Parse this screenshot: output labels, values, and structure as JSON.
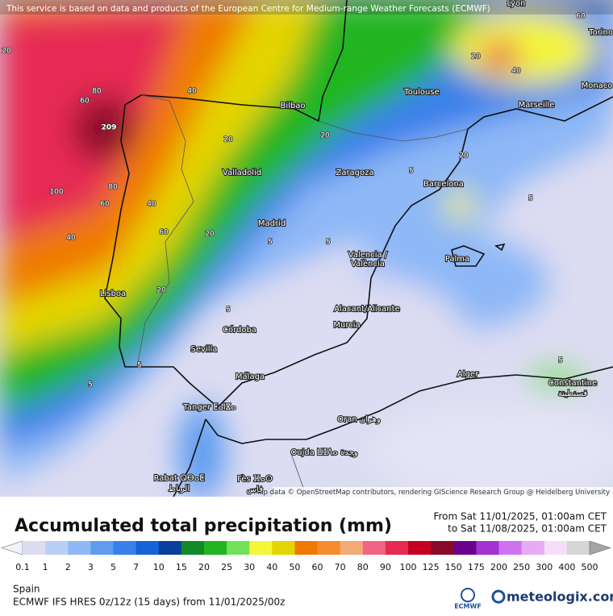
{
  "notice": "This service is based on data and products of the European Centre for Medium-range Weather Forecasts (ECMWF)",
  "map": {
    "cities": [
      "Lyon",
      "Torino",
      "Monaco",
      "Toulouse",
      "Marseille",
      "Bilbao",
      "Zaragoza",
      "Barcelona",
      "Valladolid",
      "Madrid",
      "Valencia /",
      "València",
      "Palma",
      "Lisboa",
      "Alacant/Alicante",
      "Murcia",
      "Córdoba",
      "Sevilla",
      "Málaga",
      "Alger",
      "Constantine",
      "قسنطينة",
      "Tanger ⵟⴰⵏⴵⴰ",
      "Oran وهران",
      "Oujda ⵡⵊⴷⴰ وجدة",
      "Rabat ⵕⴱⴰⵟ",
      "الرباط",
      "Fès ⴼⴰⵙ",
      "فاس"
    ],
    "contour_labels": [
      "209",
      "80",
      "60",
      "40",
      "20",
      "100",
      "60",
      "80",
      "40",
      "60",
      "40",
      "20",
      "20",
      "20",
      "5",
      "5",
      "5",
      "5",
      "5",
      "20",
      "40",
      "60",
      "20",
      "20",
      "5",
      "5",
      "5"
    ],
    "attribution": "Map data © OpenStreetMap contributors, rendering GIScience Research Group @ Heidelberg University"
  },
  "legend": {
    "title": "Accumulated total precipitation (mm)",
    "from": "From Sat 11/01/2025, 01:00am CET",
    "to": "to Sat 11/08/2025, 01:00am CET",
    "levels": [
      0.1,
      1,
      2,
      3,
      5,
      7,
      10,
      15,
      20,
      25,
      30,
      40,
      50,
      60,
      70,
      80,
      90,
      100,
      125,
      150,
      175,
      200,
      250,
      300,
      400,
      500
    ],
    "colors": [
      "#f2f2fb",
      "#dcdcf2",
      "#b8d0f6",
      "#8eb8f6",
      "#5f9cf0",
      "#3a80ea",
      "#1563d8",
      "#0c3f9c",
      "#128a2a",
      "#22b522",
      "#72e05a",
      "#f5f53a",
      "#e4d400",
      "#ef7a00",
      "#f58c30",
      "#f5aa76",
      "#f06486",
      "#e62a52",
      "#c60020",
      "#8a0a2a",
      "#6a008c",
      "#a232d2",
      "#d072f0",
      "#e8aaf5",
      "#f6def9",
      "#d6d6d6",
      "#a4a4a4"
    ]
  },
  "footer": {
    "region": "Spain",
    "model": "ECMWF IFS HRES 0z/12z (15 days) from 11/01/2025/00z",
    "logo_left": "ECMWF",
    "logo_right": "meteologix.com"
  }
}
